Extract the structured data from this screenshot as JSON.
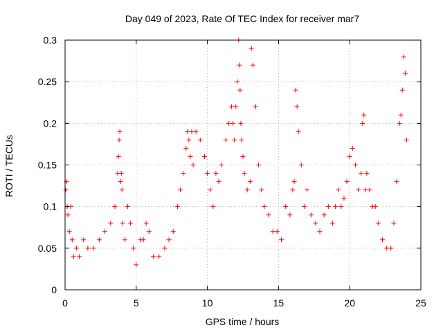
{
  "chart_data": {
    "type": "scatter",
    "title": "Day 049 of 2023, Rate Of TEC Index for receiver mar7",
    "xlabel": "GPS time / hours",
    "ylabel": "ROTI / TECUs",
    "xlim": [
      0,
      25
    ],
    "ylim": [
      0,
      0.3
    ],
    "xticks": [
      "0",
      "5",
      "10",
      "15",
      "20",
      "25"
    ],
    "yticks": [
      "0",
      "0.05",
      "0.1",
      "0.15",
      "0.2",
      "0.25",
      "0.3"
    ],
    "grid": true,
    "marker": "+",
    "color": "#ff0000",
    "series": [
      {
        "name": "",
        "x": [
          0.05,
          0.1,
          0.15,
          0.2,
          0.3,
          0.4,
          0.5,
          0.6,
          0.8,
          1.0,
          1.3,
          1.6,
          2.0,
          2.4,
          2.8,
          3.2,
          3.5,
          3.7,
          3.75,
          3.8,
          3.85,
          3.9,
          3.95,
          4.0,
          4.05,
          4.2,
          4.4,
          4.6,
          4.8,
          5.0,
          5.3,
          5.5,
          5.7,
          5.9,
          6.2,
          6.6,
          7.0,
          7.3,
          7.6,
          7.9,
          8.1,
          8.3,
          8.5,
          8.6,
          8.7,
          8.8,
          8.9,
          9.0,
          9.2,
          9.5,
          9.8,
          10.0,
          10.2,
          10.4,
          10.6,
          10.8,
          11.0,
          11.3,
          11.5,
          11.7,
          11.8,
          11.9,
          12.0,
          12.1,
          12.2,
          12.25,
          12.3,
          12.35,
          12.4,
          12.5,
          12.6,
          12.8,
          13.0,
          13.1,
          13.2,
          13.4,
          13.6,
          13.8,
          14.0,
          14.3,
          14.6,
          14.9,
          15.2,
          15.5,
          15.8,
          16.0,
          16.1,
          16.2,
          16.3,
          16.4,
          16.6,
          16.8,
          17.0,
          17.3,
          17.6,
          17.9,
          18.2,
          18.5,
          18.8,
          19.0,
          19.2,
          19.4,
          19.6,
          19.8,
          20.0,
          20.2,
          20.4,
          20.6,
          20.8,
          20.9,
          21.0,
          21.1,
          21.2,
          21.4,
          21.6,
          21.8,
          22.0,
          22.3,
          22.6,
          22.9,
          23.1,
          23.3,
          23.5,
          23.6,
          23.7,
          23.8,
          23.9,
          24.0
        ],
        "y": [
          0.12,
          0.13,
          0.1,
          0.09,
          0.07,
          0.1,
          0.06,
          0.04,
          0.05,
          0.04,
          0.06,
          0.05,
          0.05,
          0.06,
          0.07,
          0.08,
          0.1,
          0.14,
          0.16,
          0.18,
          0.19,
          0.13,
          0.14,
          0.12,
          0.08,
          0.06,
          0.1,
          0.08,
          0.05,
          0.03,
          0.06,
          0.06,
          0.08,
          0.07,
          0.04,
          0.04,
          0.05,
          0.06,
          0.07,
          0.1,
          0.12,
          0.14,
          0.17,
          0.19,
          0.18,
          0.16,
          0.19,
          0.15,
          0.19,
          0.18,
          0.16,
          0.14,
          0.12,
          0.1,
          0.14,
          0.13,
          0.15,
          0.18,
          0.2,
          0.22,
          0.2,
          0.18,
          0.22,
          0.25,
          0.3,
          0.27,
          0.24,
          0.2,
          0.18,
          0.16,
          0.14,
          0.12,
          0.13,
          0.29,
          0.27,
          0.22,
          0.15,
          0.12,
          0.1,
          0.09,
          0.07,
          0.07,
          0.06,
          0.1,
          0.09,
          0.12,
          0.13,
          0.24,
          0.22,
          0.19,
          0.15,
          0.1,
          0.12,
          0.09,
          0.08,
          0.07,
          0.09,
          0.1,
          0.08,
          0.1,
          0.12,
          0.1,
          0.11,
          0.13,
          0.16,
          0.17,
          0.15,
          0.12,
          0.14,
          0.2,
          0.21,
          0.12,
          0.14,
          0.12,
          0.1,
          0.1,
          0.08,
          0.06,
          0.05,
          0.05,
          0.08,
          0.13,
          0.2,
          0.21,
          0.24,
          0.28,
          0.26,
          0.18
        ]
      }
    ]
  }
}
